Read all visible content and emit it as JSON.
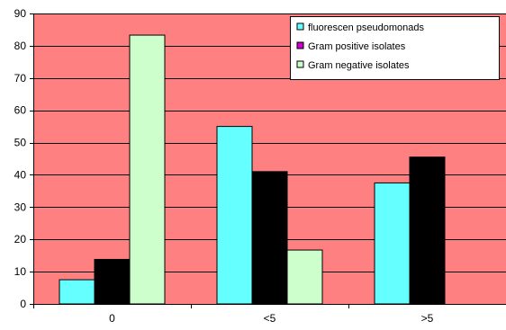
{
  "colors": {
    "plot_background": "#ff8080",
    "gridline": "#000000",
    "axis": "#000000",
    "bar_outline": "#000000",
    "legend_background": "#ffffff"
  },
  "chart_data": {
    "type": "bar",
    "title": "",
    "xlabel": "",
    "ylabel": "",
    "categories": [
      "0",
      "<5",
      ">5"
    ],
    "ylim": [
      0,
      90
    ],
    "yticks": [
      0,
      10,
      20,
      30,
      40,
      50,
      60,
      70,
      80,
      90
    ],
    "grid": true,
    "legend_position": "top-right",
    "series": [
      {
        "name": "fluorescen pseudomonads",
        "color": "#66ffff",
        "values": [
          7.5,
          55,
          37.5
        ]
      },
      {
        "name": "Gram positive isolates",
        "color": "#000000",
        "legend_color": "#cc00cc",
        "values": [
          13.8,
          41,
          45.5
        ]
      },
      {
        "name": "Gram negative isolates",
        "color": "#ccffcc",
        "values": [
          83.3,
          16.7,
          null
        ]
      }
    ]
  }
}
